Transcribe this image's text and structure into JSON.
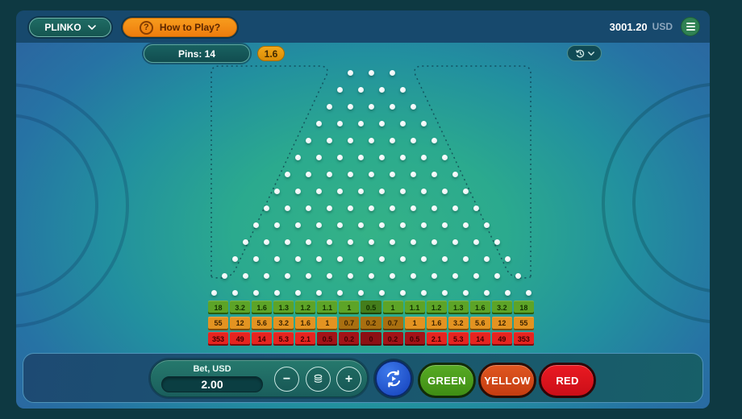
{
  "header": {
    "game_title": "PLINKO",
    "help_icon": "?",
    "how_to_play_label": "How to Play?",
    "balance": "3001.20",
    "currency": "USD"
  },
  "toolbar": {
    "pins_label": "Pins: 14",
    "last_multiplier": "1.6"
  },
  "board": {
    "rows": 14,
    "top_row_pins": 3,
    "bottom_row_pins": 16
  },
  "multipliers": {
    "rows": [
      {
        "name": "green",
        "values": [
          "18",
          "3.2",
          "1.6",
          "1.3",
          "1.2",
          "1.1",
          "1",
          "0.5",
          "1",
          "1.1",
          "1.2",
          "1.3",
          "1.6",
          "3.2",
          "18"
        ]
      },
      {
        "name": "yellow",
        "values": [
          "55",
          "12",
          "5.6",
          "3.2",
          "1.6",
          "1",
          "0.7",
          "0.2",
          "0.7",
          "1",
          "1.6",
          "3.2",
          "5.6",
          "12",
          "55"
        ]
      },
      {
        "name": "red",
        "values": [
          "353",
          "49",
          "14",
          "5.3",
          "2.1",
          "0.5",
          "0.2",
          "0",
          "0.2",
          "0.5",
          "2.1",
          "5.3",
          "14",
          "49",
          "353"
        ]
      }
    ]
  },
  "bet": {
    "label": "Bet, USD",
    "value": "2.00",
    "decrease_label": "−",
    "increase_label": "+"
  },
  "actions": {
    "green_label": "GREEN",
    "yellow_label": "YELLOW",
    "red_label": "RED"
  },
  "colors": {
    "accent_orange": "#ef8913",
    "board_center_green": "#31b187",
    "auto_button_blue": "#2156d6",
    "green_button": "#4a9c1c",
    "yellow_button": "#d4481a",
    "red_button": "#df141d"
  }
}
